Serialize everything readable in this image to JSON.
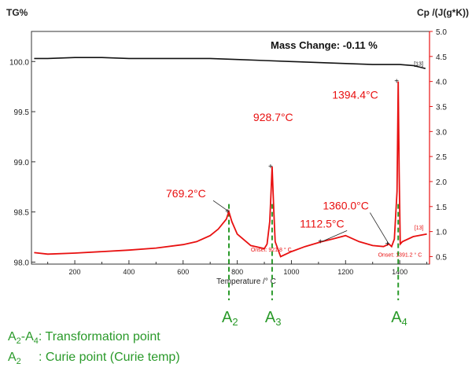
{
  "chart_data": {
    "type": "line",
    "x_axis": {
      "label": "Temperature /° C",
      "range": [
        40,
        1510
      ],
      "ticks": [
        200,
        400,
        600,
        800,
        1000,
        1200,
        1400
      ]
    },
    "y_left": {
      "label": "TG%",
      "range": [
        97.98,
        100.3
      ],
      "ticks": [
        98.0,
        98.5,
        99.0,
        99.5,
        100.0
      ],
      "tick_labels": [
        "98.0",
        "98.5",
        "99.0",
        "99.5",
        "100.0"
      ]
    },
    "y_right": {
      "label": "Cp /(J(g*K))",
      "range": [
        0.35,
        5.0
      ],
      "ticks": [
        0.5,
        1.0,
        1.5,
        2.0,
        2.5,
        3.0,
        3.5,
        4.0,
        4.5,
        5.0
      ],
      "tick_labels": [
        "0.5",
        "1.0",
        "1.5",
        "2.0",
        "2.5",
        "3.0",
        "3.5",
        "4.0",
        "4.5",
        "5.0"
      ]
    },
    "series": [
      {
        "axis": "left",
        "color": "#111111",
        "x": [
          50,
          100,
          200,
          300,
          400,
          500,
          600,
          700,
          800,
          900,
          1000,
          1100,
          1200,
          1300,
          1400,
          1450,
          1480,
          1495
        ],
        "y": [
          100.03,
          100.03,
          100.04,
          100.04,
          100.03,
          100.03,
          100.03,
          100.03,
          100.02,
          100.01,
          100.0,
          99.99,
          99.98,
          99.97,
          99.97,
          99.96,
          99.94,
          99.93
        ]
      },
      {
        "axis": "right",
        "color": "#e81010",
        "x": [
          50,
          100,
          200,
          300,
          400,
          500,
          600,
          650,
          700,
          730,
          760,
          769,
          780,
          800,
          850,
          900,
          910,
          920,
          925,
          928.7,
          935,
          940,
          960,
          1000,
          1050,
          1112.5,
          1150,
          1200,
          1250,
          1300,
          1340,
          1360,
          1370,
          1380,
          1390,
          1394.4,
          1398,
          1402,
          1410,
          1450,
          1500
        ],
        "y": [
          0.58,
          0.55,
          0.57,
          0.6,
          0.63,
          0.67,
          0.74,
          0.8,
          0.92,
          1.05,
          1.25,
          1.4,
          1.2,
          0.95,
          0.72,
          0.66,
          0.75,
          1.2,
          1.8,
          2.3,
          1.4,
          0.8,
          0.5,
          0.6,
          0.7,
          0.8,
          0.85,
          0.92,
          0.8,
          0.72,
          0.7,
          0.75,
          0.7,
          0.85,
          1.8,
          4.0,
          2.2,
          0.75,
          0.8,
          0.9,
          0.95
        ]
      }
    ],
    "annotations": [
      {
        "text": "769.2°C",
        "x": 769.2,
        "y": 1.4,
        "axis": "right"
      },
      {
        "text": "928.7°C",
        "x": 928.7,
        "y": 2.3,
        "axis": "right"
      },
      {
        "text": "1112.5°C",
        "x": 1112.5,
        "y": 0.8,
        "axis": "right"
      },
      {
        "text": "1360.0°C",
        "x": 1360.0,
        "y": 0.75,
        "axis": "right"
      },
      {
        "text": "1394.4°C",
        "x": 1394.4,
        "y": 4.0,
        "axis": "right"
      },
      {
        "text": "Onset: 921.8 ° C",
        "x": 850,
        "y": 0.6,
        "axis": "right"
      },
      {
        "text": "Onset: 1391.2 ° C",
        "x": 1320,
        "y": 0.5,
        "axis": "right"
      },
      {
        "text": "[13]",
        "x": 1495,
        "y": 0.95,
        "axis": "right"
      },
      {
        "text": "[13]",
        "x": 1470,
        "y": 99.96,
        "axis": "left"
      }
    ],
    "mass_change": "Mass Change: -0.11 %",
    "transition_markers": [
      {
        "x": 769.2,
        "label": "A",
        "sub": "2"
      },
      {
        "x": 928.7,
        "label": "A",
        "sub": "3"
      },
      {
        "x": 1394.4,
        "label": "A",
        "sub": "4"
      }
    ],
    "colors": {
      "tg": "#111111",
      "cp": "#e81010",
      "marker": "#2a9a2a"
    }
  },
  "legend": {
    "line1_a": "A",
    "line1_sub1": "2",
    "line1_dash": "-A",
    "line1_sub2": "4",
    "line1_text": ": Transformation point",
    "line2_a": "A",
    "line2_sub": "2",
    "line2_text": "     : Curie point (Curie temp)"
  }
}
